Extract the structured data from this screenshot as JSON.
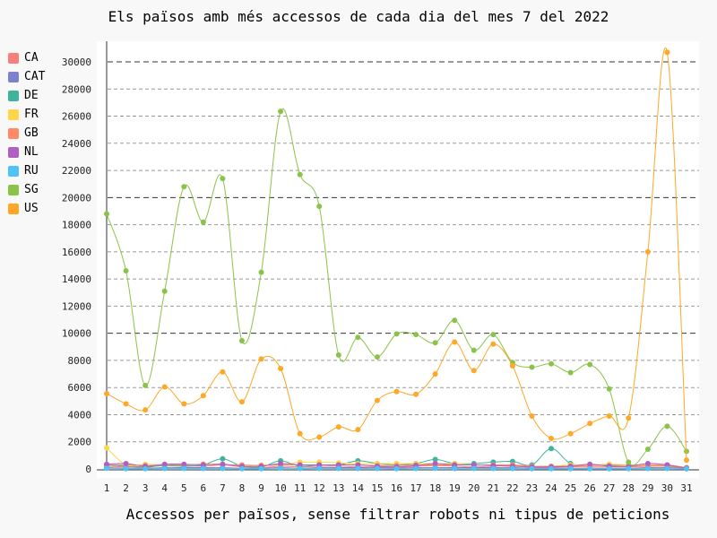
{
  "colors": {
    "CA": "#f8807a",
    "CAT": "#7c83cc",
    "DE": "#3fb49a",
    "FR": "#ffd54a",
    "GB": "#ff8a65",
    "NL": "#b05ec0",
    "RU": "#4fc3f7",
    "SG": "#8bc34a",
    "US": "#ffa726"
  },
  "chart_data": {
    "type": "line",
    "title": "Els països amb més accessos de cada dia del mes 7 del 2022",
    "xlabel": "Accessos per països, sense filtrar robots ni tipus de peticions",
    "ylabel": "",
    "x": [
      1,
      2,
      3,
      4,
      5,
      6,
      7,
      8,
      9,
      10,
      11,
      12,
      13,
      14,
      15,
      16,
      17,
      18,
      19,
      20,
      21,
      22,
      23,
      24,
      25,
      26,
      27,
      28,
      29,
      30,
      31
    ],
    "ylim": [
      0,
      31000
    ],
    "yticks": [
      0,
      2000,
      4000,
      6000,
      8000,
      10000,
      12000,
      14000,
      16000,
      18000,
      20000,
      22000,
      24000,
      26000,
      28000,
      30000
    ],
    "grid": true,
    "legend_position": "left",
    "series": [
      {
        "name": "CA",
        "values": [
          200,
          150,
          100,
          300,
          250,
          200,
          300,
          150,
          100,
          200,
          150,
          200,
          200,
          150,
          150,
          100,
          200,
          250,
          200,
          150,
          200,
          250,
          100,
          100,
          150,
          150,
          150,
          150,
          200,
          200,
          50
        ]
      },
      {
        "name": "CAT",
        "values": [
          100,
          50,
          50,
          100,
          100,
          100,
          100,
          50,
          50,
          100,
          50,
          100,
          100,
          100,
          100,
          50,
          100,
          100,
          100,
          100,
          100,
          100,
          50,
          50,
          50,
          50,
          50,
          50,
          100,
          100,
          20
        ]
      },
      {
        "name": "DE",
        "values": [
          300,
          200,
          150,
          250,
          200,
          300,
          750,
          200,
          150,
          600,
          200,
          300,
          300,
          600,
          400,
          300,
          400,
          700,
          400,
          400,
          500,
          550,
          300,
          1500,
          400,
          300,
          300,
          300,
          300,
          300,
          100
        ]
      },
      {
        "name": "FR",
        "values": [
          1550,
          300,
          350,
          300,
          300,
          350,
          350,
          200,
          300,
          300,
          500,
          500,
          450,
          400,
          400,
          400,
          400,
          400,
          400,
          300,
          300,
          300,
          200,
          200,
          300,
          300,
          350,
          300,
          300,
          300,
          100
        ]
      },
      {
        "name": "GB",
        "values": [
          300,
          300,
          250,
          300,
          300,
          350,
          300,
          300,
          250,
          300,
          300,
          300,
          300,
          300,
          250,
          250,
          300,
          300,
          300,
          300,
          300,
          300,
          200,
          200,
          200,
          250,
          250,
          200,
          250,
          250,
          100
        ]
      },
      {
        "name": "NL",
        "values": [
          350,
          400,
          200,
          350,
          350,
          300,
          350,
          200,
          200,
          400,
          300,
          300,
          300,
          300,
          200,
          150,
          250,
          400,
          300,
          300,
          250,
          200,
          150,
          150,
          200,
          350,
          200,
          200,
          400,
          300,
          50
        ]
      },
      {
        "name": "RU",
        "values": [
          50,
          20,
          20,
          30,
          30,
          30,
          30,
          20,
          20,
          50,
          30,
          30,
          30,
          30,
          30,
          20,
          30,
          50,
          30,
          30,
          30,
          30,
          20,
          20,
          20,
          20,
          20,
          20,
          30,
          30,
          10
        ]
      },
      {
        "name": "SG",
        "values": [
          18800,
          14600,
          6150,
          13100,
          20800,
          18200,
          21400,
          9450,
          14500,
          26350,
          21700,
          19350,
          8400,
          9700,
          8250,
          9950,
          9900,
          9300,
          10950,
          8750,
          9900,
          7850,
          7500,
          7750,
          7100,
          7700,
          5900,
          500,
          1450,
          3150,
          1300
        ]
      },
      {
        "name": "US",
        "values": [
          5550,
          4800,
          4350,
          6050,
          4800,
          5400,
          7150,
          4950,
          8100,
          7400,
          2600,
          2350,
          3100,
          2900,
          5050,
          5700,
          5500,
          7000,
          9350,
          7250,
          9200,
          7600,
          3900,
          2250,
          2600,
          3350,
          3900,
          3750,
          16000,
          30700,
          650
        ]
      }
    ]
  }
}
